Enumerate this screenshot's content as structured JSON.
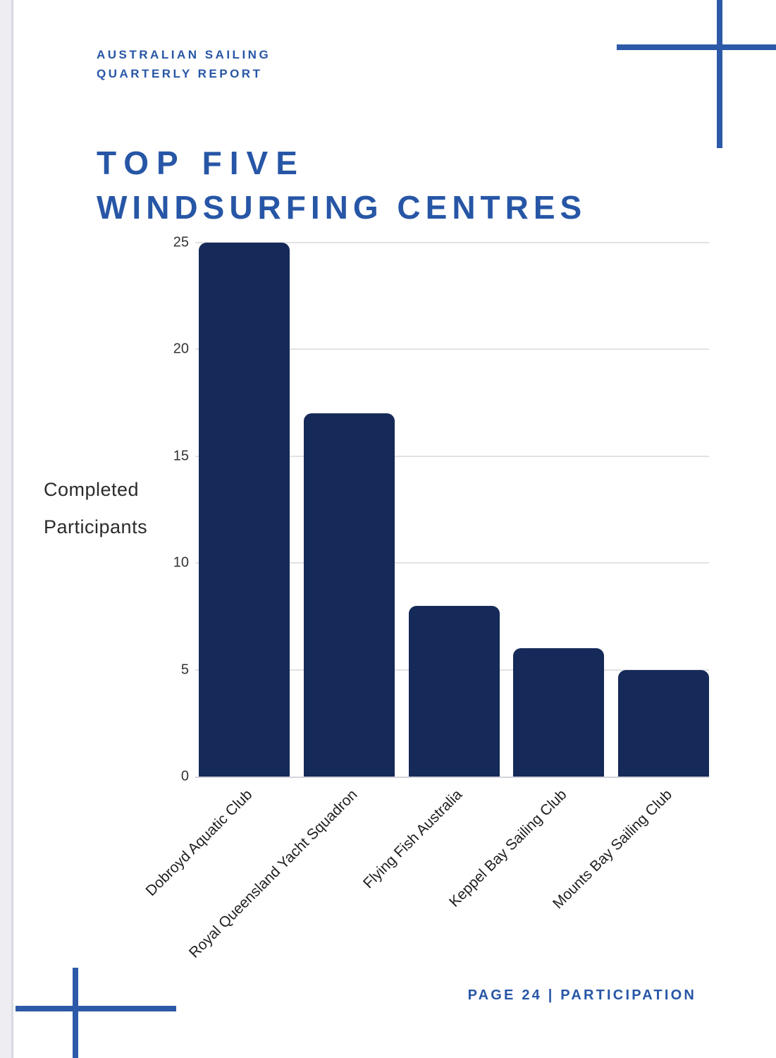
{
  "page": {
    "header": {
      "line1": "AUSTRALIAN SAILING",
      "line2": "QUARTERLY REPORT"
    },
    "title": {
      "line1": "TOP FIVE",
      "line2": "WINDSURFING CENTRES"
    },
    "footer": "PAGE 24 | PARTICIPATION"
  },
  "colors": {
    "brand_blue": "#2756a6",
    "cross_blue": "#2d5aa8",
    "bar_navy": "#152a59",
    "gridline": "#e2e2e5",
    "axis_text": "#333333"
  },
  "chart_data": {
    "type": "bar",
    "title": "TOP FIVE WINDSURFING CENTRES",
    "ylabel": "Completed Participants",
    "ylabel_lines": [
      "Completed",
      "Participants"
    ],
    "xlabel": "",
    "categories": [
      "Dobroyd Aquatic Club",
      "Royal Queensland Yacht Squadron",
      "Flying Fish Australia",
      "Keppel Bay Sailing Club",
      "Mounts Bay Sailing Club"
    ],
    "values": [
      25,
      17,
      8,
      6,
      5
    ],
    "yticks": [
      0,
      5,
      10,
      15,
      20,
      25
    ],
    "ylim": [
      0,
      25
    ],
    "grid": true,
    "legend_position": "none",
    "bar_color": "#152a59",
    "tick_label_rotation_deg": 45
  }
}
